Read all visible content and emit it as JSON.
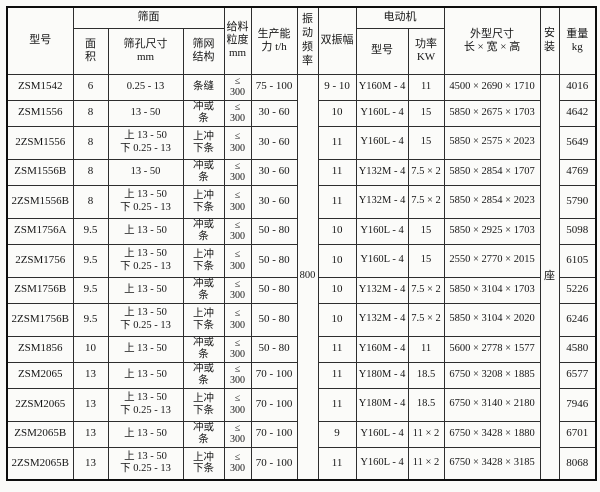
{
  "header": {
    "model": "型号",
    "screen_group": "筛面",
    "area_lines": [
      "面",
      "积"
    ],
    "hole_lines": [
      "筛孔尺寸",
      "mm"
    ],
    "mesh_lines": [
      "筛网",
      "结构"
    ],
    "feed_lines": [
      "给料",
      "粒度",
      "mm"
    ],
    "capacity_lines": [
      "生产能",
      "力 t/h"
    ],
    "vibration_frequency": "振动频率",
    "double_amplitude": "双振幅",
    "motor_group": "电动机",
    "motor_model": "型号",
    "power_lines": [
      "功率",
      "KW"
    ],
    "dimension_lines": [
      "外型尺寸",
      "长 × 宽 × 高"
    ],
    "installation": "安装",
    "weight_lines": [
      "重量",
      "kg"
    ]
  },
  "merged": {
    "vibration_frequency_value": "800",
    "installation_value": "座"
  },
  "rows": [
    {
      "model": "ZSM1542",
      "area": "6",
      "hole": [
        "0.25 - 13"
      ],
      "mesh": [
        "条缝"
      ],
      "feed": [
        "≤",
        "300"
      ],
      "capacity": "75 - 100",
      "amplitude": "9 - 10",
      "motor_model": "Y160M - 4",
      "power": "11",
      "dimensions": "4500 × 2690 × 1710",
      "weight": "4016"
    },
    {
      "model": "ZSM1556",
      "area": "8",
      "hole": [
        "13 - 50"
      ],
      "mesh": [
        "冲或",
        "条"
      ],
      "feed": [
        "≤",
        "300"
      ],
      "capacity": "30 - 60",
      "amplitude": "10",
      "motor_model": "Y160L - 4",
      "power": "15",
      "dimensions": "5850 × 2675 × 1703",
      "weight": "4642"
    },
    {
      "model": "2ZSM1556",
      "area": "8",
      "hole": [
        "上 13 - 50",
        "下 0.25 - 13"
      ],
      "mesh": [
        "上冲",
        "下条"
      ],
      "feed": [
        "≤",
        "300"
      ],
      "capacity": "30 - 60",
      "amplitude": "11",
      "motor_model": "Y160L - 4",
      "power": "15",
      "dimensions": "5850 × 2575 × 2023",
      "weight": "5649"
    },
    {
      "model": "ZSM1556B",
      "area": "8",
      "hole": [
        "13 - 50"
      ],
      "mesh": [
        "冲或",
        "条"
      ],
      "feed": [
        "≤",
        "300"
      ],
      "capacity": "30 - 60",
      "amplitude": "11",
      "motor_model": "Y132M - 4",
      "power": "7.5 × 2",
      "dimensions": "5850 × 2854 × 1707",
      "weight": "4769"
    },
    {
      "model": "2ZSM1556B",
      "area": "8",
      "hole": [
        "上 13 - 50",
        "下 0.25 - 13"
      ],
      "mesh": [
        "上冲",
        "下条"
      ],
      "feed": [
        "≤",
        "300"
      ],
      "capacity": "30 - 60",
      "amplitude": "11",
      "motor_model": "Y132M - 4",
      "power": "7.5 × 2",
      "dimensions": "5850 × 2854 × 2023",
      "weight": "5790"
    },
    {
      "model": "ZSM1756A",
      "area": "9.5",
      "hole": [
        "上 13 - 50"
      ],
      "mesh": [
        "冲或",
        "条"
      ],
      "feed": [
        "≤",
        "300"
      ],
      "capacity": "50 - 80",
      "amplitude": "10",
      "motor_model": "Y160L - 4",
      "power": "15",
      "dimensions": "5850 × 2925 × 1703",
      "weight": "5098"
    },
    {
      "model": "2ZSM1756",
      "area": "9.5",
      "hole": [
        "上 13 - 50",
        "下 0.25 - 13"
      ],
      "mesh": [
        "上冲",
        "下条"
      ],
      "feed": [
        "≤",
        "300"
      ],
      "capacity": "50 - 80",
      "amplitude": "10",
      "motor_model": "Y160L - 4",
      "power": "15",
      "dimensions": "2550 × 2770 × 2015",
      "weight": "6105"
    },
    {
      "model": "ZSM1756B",
      "area": "9.5",
      "hole": [
        "上 13 - 50"
      ],
      "mesh": [
        "冲或",
        "条"
      ],
      "feed": [
        "≤",
        "300"
      ],
      "capacity": "50 - 80",
      "amplitude": "10",
      "motor_model": "Y132M - 4",
      "power": "7.5 × 2",
      "dimensions": "5850 × 3104 × 1703",
      "weight": "5226"
    },
    {
      "model": "2ZSM1756B",
      "area": "9.5",
      "hole": [
        "上 13 - 50",
        "下 0.25 - 13"
      ],
      "mesh": [
        "上冲",
        "下条"
      ],
      "feed": [
        "≤",
        "300"
      ],
      "capacity": "50 - 80",
      "amplitude": "10",
      "motor_model": "Y132M - 4",
      "power": "7.5 × 2",
      "dimensions": "5850 × 3104 × 2020",
      "weight": "6246"
    },
    {
      "model": "ZSM1856",
      "area": "10",
      "hole": [
        "上 13 - 50"
      ],
      "mesh": [
        "冲或",
        "条"
      ],
      "feed": [
        "≤",
        "300"
      ],
      "capacity": "50 - 80",
      "amplitude": "11",
      "motor_model": "Y160M - 4",
      "power": "11",
      "dimensions": "5600 × 2778 × 1577",
      "weight": "4580"
    },
    {
      "model": "ZSM2065",
      "area": "13",
      "hole": [
        "上 13 - 50"
      ],
      "mesh": [
        "冲或",
        "条"
      ],
      "feed": [
        "≤",
        "300"
      ],
      "capacity": "70 - 100",
      "amplitude": "11",
      "motor_model": "Y180M - 4",
      "power": "18.5",
      "dimensions": "6750 × 3208 × 1885",
      "weight": "6577"
    },
    {
      "model": "2ZSM2065",
      "area": "13",
      "hole": [
        "上 13 - 50",
        "下 0.25 - 13"
      ],
      "mesh": [
        "上冲",
        "下条"
      ],
      "feed": [
        "≤",
        "300"
      ],
      "capacity": "70 - 100",
      "amplitude": "11",
      "motor_model": "Y180M - 4",
      "power": "18.5",
      "dimensions": "6750 × 3140 × 2180",
      "weight": "7946"
    },
    {
      "model": "ZSM2065B",
      "area": "13",
      "hole": [
        "上 13 - 50"
      ],
      "mesh": [
        "冲或",
        "条"
      ],
      "feed": [
        "≤",
        "300"
      ],
      "capacity": "70 - 100",
      "amplitude": "9",
      "motor_model": "Y160L - 4",
      "power": "11 × 2",
      "dimensions": "6750 × 3428 × 1880",
      "weight": "6701"
    },
    {
      "model": "2ZSM2065B",
      "area": "13",
      "hole": [
        "上 13 - 50",
        "下 0.25 - 13"
      ],
      "mesh": [
        "上冲",
        "下条"
      ],
      "feed": [
        "≤",
        "300"
      ],
      "capacity": "70 - 100",
      "amplitude": "11",
      "motor_model": "Y160L - 4",
      "power": "11 × 2",
      "dimensions": "6750 × 3428 × 3185",
      "weight": "8068"
    }
  ]
}
